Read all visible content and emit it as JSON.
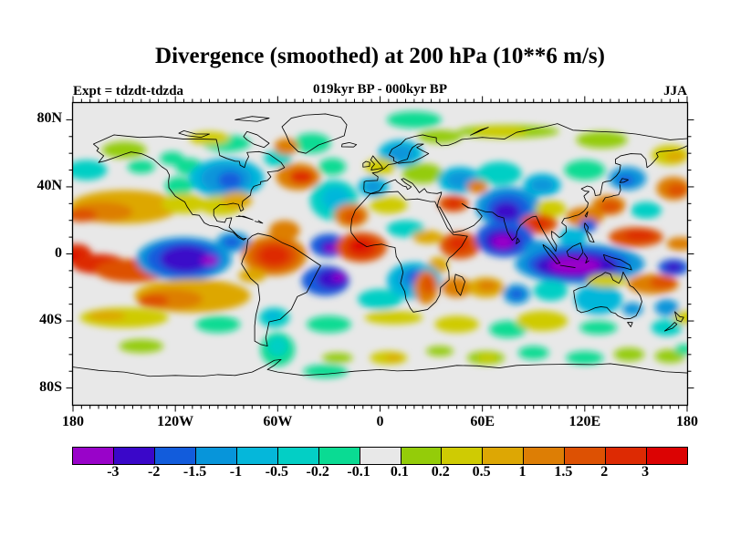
{
  "header": {
    "title": "Divergence (smoothed) at 200 hPa (10**6 m/s)",
    "experiment": "Expt = tdzdt-tdzda",
    "period": "019kyr BP - 000kyr BP",
    "season": "JJA"
  },
  "chart_data": {
    "type": "heatmap",
    "title": "Divergence (smoothed) at 200 hPa (10**6 m/s)",
    "subtitle_center": "019kyr BP - 000kyr BP",
    "subtitle_left": "Expt = tdzdt-tdzda",
    "subtitle_right": "JJA",
    "projection": "equirectangular world map, coastlines overlaid",
    "lon_range": [
      -180,
      180
    ],
    "lat_range": [
      -90,
      90
    ],
    "x_ticks": [
      {
        "label": "180",
        "lon": -180
      },
      {
        "label": "120W",
        "lon": -120
      },
      {
        "label": "60W",
        "lon": -60
      },
      {
        "label": "0",
        "lon": 0
      },
      {
        "label": "60E",
        "lon": 60
      },
      {
        "label": "120E",
        "lon": 120
      },
      {
        "label": "180",
        "lon": 180
      }
    ],
    "y_ticks": [
      {
        "label": "80N",
        "lat": 80
      },
      {
        "label": "40N",
        "lat": 40
      },
      {
        "label": "0",
        "lat": 0
      },
      {
        "label": "40S",
        "lat": -40
      },
      {
        "label": "80S",
        "lat": -80
      }
    ],
    "minor_tick_lon_step": 5,
    "minor_tick_lat_step": 10,
    "major_tick_lon_step": 60,
    "major_tick_lat_step": 40,
    "grid": false,
    "background_color": "#E8E8E8",
    "colorbar": {
      "position": "bottom",
      "boundary_labels": [
        "-3",
        "-2",
        "-1.5",
        "-1",
        "-0.5",
        "-0.2",
        "-0.1",
        "0.1",
        "0.2",
        "0.5",
        "1",
        "1.5",
        "2",
        "3"
      ],
      "colors": [
        "#9903C9",
        "#3A07C9",
        "#125CDC",
        "#0795DA",
        "#05B7DA",
        "#03CFC5",
        "#0ADB93",
        "#E8E8E8",
        "#94CC09",
        "#CFCB03",
        "#DDA704",
        "#DD7E05",
        "#DD5103",
        "#DD2A03",
        "#DC0303"
      ]
    },
    "features_note": "approximate filled-contour anomaly regions; [lon, lat, rx_deg, ry_deg, color_index]",
    "features": [
      [
        -150,
        62,
        13,
        5,
        8
      ],
      [
        -122,
        57,
        7,
        4,
        6
      ],
      [
        -140,
        52,
        8,
        4,
        6
      ],
      [
        -172,
        50,
        12,
        6,
        5
      ],
      [
        -112,
        52,
        8,
        5,
        6
      ],
      [
        -90,
        66,
        14,
        5,
        6
      ],
      [
        -100,
        69,
        12,
        4,
        9
      ],
      [
        -60,
        57,
        8,
        5,
        5
      ],
      [
        -40,
        66,
        11,
        6,
        6
      ],
      [
        -55,
        64,
        7,
        5,
        11
      ],
      [
        20,
        80,
        16,
        5,
        6
      ],
      [
        12,
        60,
        13,
        8,
        4
      ],
      [
        12,
        60,
        8,
        5,
        3
      ],
      [
        35,
        70,
        13,
        4,
        8
      ],
      [
        75,
        73,
        30,
        4,
        8
      ],
      [
        70,
        73,
        16,
        3,
        9
      ],
      [
        130,
        68,
        15,
        5,
        8
      ],
      [
        170,
        59,
        11,
        6,
        9
      ],
      [
        173,
        58,
        6,
        3,
        10
      ],
      [
        -90,
        45,
        22,
        12,
        4
      ],
      [
        -90,
        45,
        15,
        9,
        3
      ],
      [
        -88,
        44,
        7,
        5,
        2
      ],
      [
        -118,
        40,
        8,
        6,
        6
      ],
      [
        -48,
        46,
        13,
        8,
        11
      ],
      [
        -46,
        46,
        7,
        4,
        13
      ],
      [
        -28,
        52,
        8,
        5,
        6
      ],
      [
        -27,
        32,
        14,
        12,
        5
      ],
      [
        -26,
        33,
        8,
        7,
        4
      ],
      [
        0,
        52,
        9,
        5,
        9
      ],
      [
        -4,
        40,
        9,
        6,
        4
      ],
      [
        -4,
        40,
        5,
        4,
        3
      ],
      [
        25,
        48,
        12,
        6,
        8
      ],
      [
        47,
        44,
        13,
        8,
        4
      ],
      [
        47,
        44,
        8,
        5,
        3
      ],
      [
        70,
        48,
        13,
        7,
        5
      ],
      [
        95,
        41,
        11,
        7,
        4
      ],
      [
        95,
        41,
        7,
        4,
        3
      ],
      [
        120,
        50,
        12,
        6,
        6
      ],
      [
        57,
        40,
        6,
        4,
        11
      ],
      [
        145,
        45,
        11,
        7,
        3
      ],
      [
        144,
        44,
        5,
        3,
        2
      ],
      [
        172,
        39,
        10,
        7,
        11
      ],
      [
        174,
        38,
        6,
        4,
        12
      ],
      [
        -150,
        28,
        32,
        10,
        10
      ],
      [
        -163,
        25,
        18,
        6,
        11
      ],
      [
        -175,
        23,
        9,
        4,
        12
      ],
      [
        -115,
        30,
        13,
        6,
        9
      ],
      [
        -93,
        29,
        13,
        6,
        9
      ],
      [
        -84,
        32,
        9,
        5,
        10
      ],
      [
        -17,
        23,
        10,
        7,
        11
      ],
      [
        -16,
        22,
        6,
        4,
        12
      ],
      [
        5,
        29,
        11,
        5,
        9
      ],
      [
        15,
        15,
        11,
        5,
        5
      ],
      [
        43,
        30,
        9,
        5,
        12
      ],
      [
        43,
        30,
        4,
        3,
        13
      ],
      [
        75,
        28,
        19,
        12,
        3
      ],
      [
        75,
        27,
        13,
        9,
        2
      ],
      [
        74,
        25,
        8,
        6,
        1
      ],
      [
        100,
        27,
        9,
        5,
        9
      ],
      [
        93,
        18,
        11,
        6,
        12
      ],
      [
        93,
        18,
        6,
        3,
        13
      ],
      [
        120,
        22,
        11,
        6,
        11
      ],
      [
        122,
        17,
        5,
        4,
        2
      ],
      [
        134,
        29,
        10,
        6,
        11
      ],
      [
        135,
        28,
        6,
        4,
        12
      ],
      [
        156,
        26,
        9,
        5,
        5
      ],
      [
        -178,
        0,
        9,
        6,
        13
      ],
      [
        -179,
        -2,
        5,
        3,
        14
      ],
      [
        -165,
        -6,
        16,
        6,
        13
      ],
      [
        -145,
        -10,
        22,
        7,
        12
      ],
      [
        -115,
        -3,
        28,
        13,
        3
      ],
      [
        -115,
        -3,
        22,
        11,
        2
      ],
      [
        -114,
        -3,
        15,
        8,
        1
      ],
      [
        -100,
        -4,
        5,
        3,
        0
      ],
      [
        -86,
        7,
        10,
        6,
        3
      ],
      [
        -87,
        7,
        5,
        3,
        2
      ],
      [
        -62,
        -1,
        19,
        12,
        11
      ],
      [
        -62,
        -1,
        14,
        9,
        12
      ],
      [
        -62,
        -1,
        9,
        6,
        13
      ],
      [
        -56,
        14,
        9,
        6,
        11
      ],
      [
        -30,
        5,
        11,
        7,
        2
      ],
      [
        -29,
        4,
        6,
        4,
        1
      ],
      [
        -29,
        3,
        3,
        2,
        0
      ],
      [
        -11,
        4,
        15,
        9,
        12
      ],
      [
        -11,
        4,
        9,
        6,
        13
      ],
      [
        -12,
        5,
        5,
        3,
        14
      ],
      [
        28,
        10,
        9,
        4,
        10
      ],
      [
        34,
        -7,
        6,
        5,
        10
      ],
      [
        47,
        5,
        12,
        8,
        12
      ],
      [
        46,
        6,
        6,
        4,
        13
      ],
      [
        73,
        9,
        17,
        11,
        2
      ],
      [
        72,
        8,
        11,
        7,
        1
      ],
      [
        72,
        7,
        6,
        4,
        0
      ],
      [
        93,
        3,
        8,
        5,
        3
      ],
      [
        113,
        10,
        8,
        6,
        4
      ],
      [
        117,
        -6,
        38,
        12,
        3
      ],
      [
        116,
        -6,
        30,
        10,
        2
      ],
      [
        115,
        -7,
        24,
        8,
        1
      ],
      [
        114,
        -7,
        15,
        5,
        0
      ],
      [
        150,
        10,
        16,
        6,
        12
      ],
      [
        152,
        11,
        9,
        3,
        13
      ],
      [
        176,
        6,
        8,
        4,
        11
      ],
      [
        172,
        -8,
        9,
        5,
        2
      ],
      [
        172,
        -8,
        5,
        3,
        1
      ],
      [
        -110,
        -25,
        34,
        10,
        10
      ],
      [
        -122,
        -27,
        18,
        6,
        11
      ],
      [
        -133,
        -28,
        9,
        4,
        12
      ],
      [
        -75,
        -13,
        8,
        4,
        10
      ],
      [
        -32,
        -16,
        14,
        9,
        2
      ],
      [
        -28,
        -15,
        9,
        6,
        1
      ],
      [
        -24,
        -14,
        4,
        2,
        0
      ],
      [
        0,
        -27,
        13,
        6,
        5
      ],
      [
        20,
        -16,
        16,
        11,
        4
      ],
      [
        20,
        -15,
        10,
        7,
        3
      ],
      [
        21,
        -14,
        5,
        4,
        2
      ],
      [
        27,
        -20,
        7,
        10,
        11
      ],
      [
        28,
        -18,
        4,
        6,
        12
      ],
      [
        45,
        -20,
        9,
        6,
        11
      ],
      [
        62,
        -20,
        11,
        6,
        10
      ],
      [
        63,
        -19,
        6,
        3,
        11
      ],
      [
        80,
        -24,
        8,
        6,
        3
      ],
      [
        80,
        -24,
        4,
        3,
        2
      ],
      [
        100,
        -22,
        10,
        6,
        5
      ],
      [
        128,
        -27,
        14,
        9,
        4
      ],
      [
        148,
        -33,
        6,
        4,
        3
      ],
      [
        133,
        -16,
        12,
        4,
        9
      ],
      [
        160,
        -18,
        15,
        6,
        11
      ],
      [
        166,
        -17,
        8,
        4,
        12
      ],
      [
        168,
        -32,
        7,
        5,
        3
      ],
      [
        -150,
        -38,
        26,
        6,
        9
      ],
      [
        -160,
        -37,
        11,
        3,
        10
      ],
      [
        -95,
        -42,
        13,
        5,
        6
      ],
      [
        -62,
        -38,
        9,
        6,
        5
      ],
      [
        -63,
        -37,
        5,
        3,
        4
      ],
      [
        -30,
        -42,
        13,
        5,
        6
      ],
      [
        8,
        -38,
        17,
        4,
        9
      ],
      [
        45,
        -42,
        13,
        5,
        9
      ],
      [
        75,
        -45,
        11,
        5,
        6
      ],
      [
        95,
        -40,
        15,
        6,
        9
      ],
      [
        128,
        -44,
        11,
        4,
        6
      ],
      [
        168,
        -44,
        9,
        5,
        5
      ],
      [
        178,
        -38,
        6,
        4,
        9
      ],
      [
        -140,
        -55,
        13,
        4,
        8
      ],
      [
        -60,
        -57,
        10,
        10,
        6
      ],
      [
        -60,
        -55,
        6,
        6,
        5
      ],
      [
        -25,
        -62,
        9,
        3,
        8
      ],
      [
        5,
        -62,
        11,
        4,
        9
      ],
      [
        8,
        -62,
        5,
        2,
        10
      ],
      [
        35,
        -58,
        8,
        3,
        8
      ],
      [
        62,
        -62,
        11,
        4,
        8
      ],
      [
        63,
        -62,
        6,
        2,
        9
      ],
      [
        90,
        -59,
        9,
        4,
        6
      ],
      [
        120,
        -62,
        11,
        4,
        6
      ],
      [
        146,
        -60,
        9,
        4,
        8
      ],
      [
        170,
        -61,
        9,
        4,
        8
      ],
      [
        -32,
        -70,
        13,
        4,
        6
      ],
      [
        178,
        -57,
        5,
        3,
        6
      ]
    ]
  }
}
